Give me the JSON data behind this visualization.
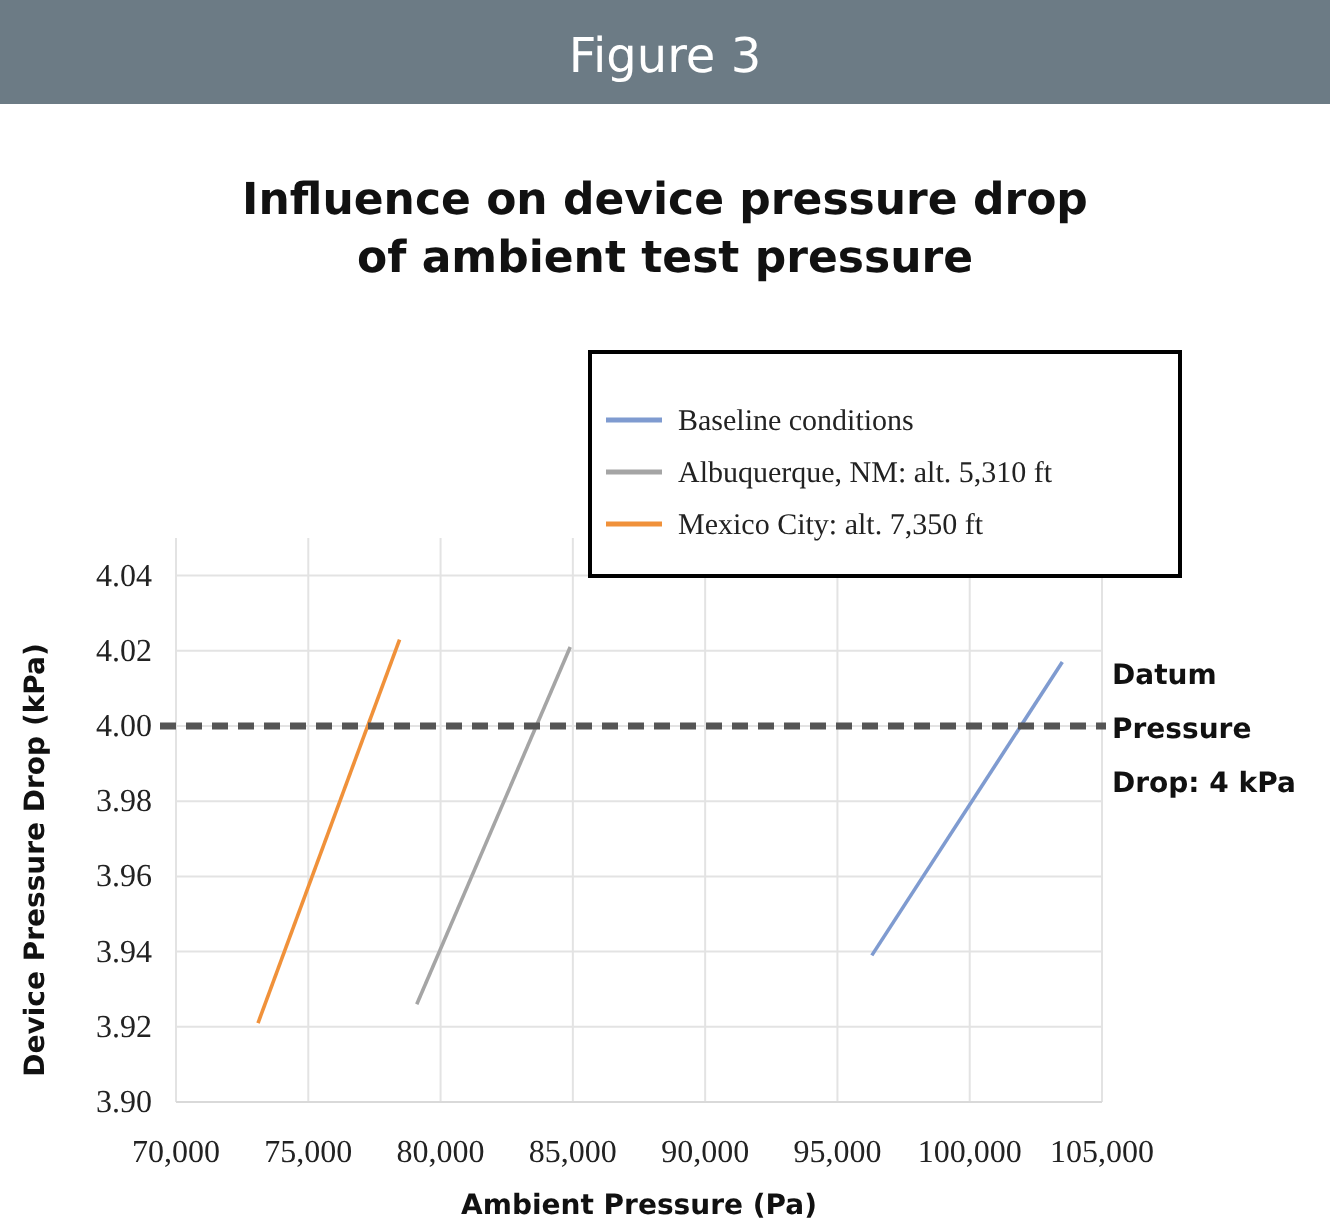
{
  "chart_data": {
    "type": "line",
    "title": "Figure 3",
    "subtitle": "Influence on device pressure drop\nof ambient test pressure",
    "xlabel": "Ambient Pressure (Pa)",
    "ylabel": "Device Pressure Drop (kPa)",
    "series": [
      {
        "name": "Baseline conditions",
        "color": "#7f9bd0",
        "x": [
          96300,
          103500
        ],
        "values": [
          3.939,
          4.017
        ]
      },
      {
        "name": "Albuquerque, NM: alt. 5,310 ft",
        "color": "#a5a5a5",
        "x": [
          79100,
          84900
        ],
        "values": [
          3.926,
          4.021
        ]
      },
      {
        "name": "Mexico City: alt. 7,350 ft",
        "color": "#f0913a",
        "x": [
          73100,
          78450
        ],
        "values": [
          3.921,
          4.023
        ]
      }
    ],
    "xlim": [
      70000,
      105000
    ],
    "xticks": [
      {
        "value": 70000,
        "label": "70,000"
      },
      {
        "value": 75000,
        "label": "75,000"
      },
      {
        "value": 80000,
        "label": "80,000"
      },
      {
        "value": 85000,
        "label": "85,000"
      },
      {
        "value": 90000,
        "label": "90,000"
      },
      {
        "value": 95000,
        "label": "95,000"
      },
      {
        "value": 100000,
        "label": "100,000"
      },
      {
        "value": 105000,
        "label": "105,000"
      }
    ],
    "ylim": [
      3.9,
      4.05
    ],
    "yticks": [
      {
        "value": 3.9,
        "label": "3.90"
      },
      {
        "value": 3.92,
        "label": "3.92"
      },
      {
        "value": 3.94,
        "label": "3.94"
      },
      {
        "value": 3.96,
        "label": "3.96"
      },
      {
        "value": 3.98,
        "label": "3.98"
      },
      {
        "value": 4.0,
        "label": "4.00"
      },
      {
        "value": 4.02,
        "label": "4.02"
      },
      {
        "value": 4.04,
        "label": "4.04"
      }
    ],
    "ref_lines": [
      {
        "axis": "y",
        "value": 4.0,
        "label": "Datum\nPressure\nDrop: 4 kPa",
        "color": "#555555",
        "line_style": "dashed"
      }
    ],
    "grid": true,
    "legend": "top right",
    "marker": "none",
    "line_style": "solid"
  }
}
